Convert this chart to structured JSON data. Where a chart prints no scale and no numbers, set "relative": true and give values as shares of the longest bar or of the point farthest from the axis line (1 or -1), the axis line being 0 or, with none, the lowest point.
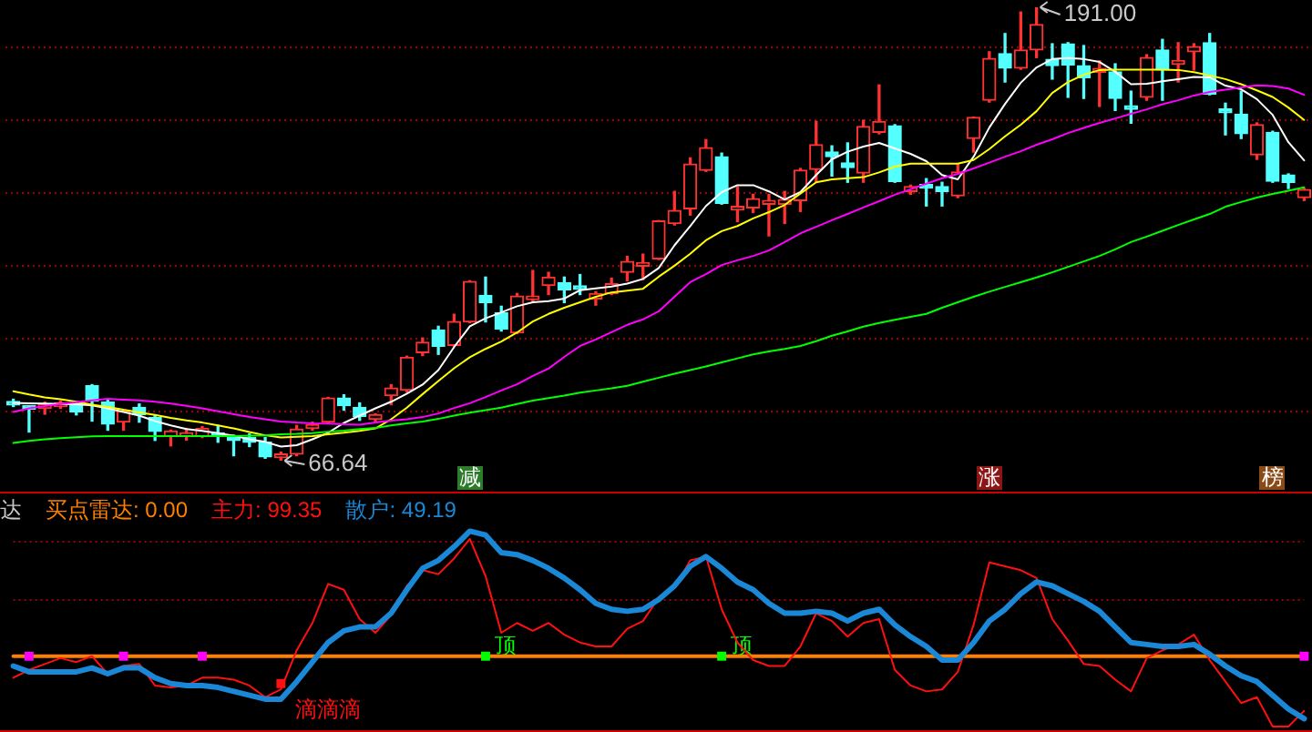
{
  "chart_data": [
    {
      "type": "candlestick",
      "categories": [
        null,
        null,
        null,
        null,
        null,
        null,
        null,
        null,
        null,
        null,
        null,
        null,
        null,
        null,
        null,
        null,
        null,
        null,
        null,
        null,
        null,
        null,
        null,
        null,
        null,
        null,
        null,
        null,
        null,
        null,
        null,
        null,
        null,
        null,
        null,
        null,
        null,
        null,
        null,
        null,
        null,
        null,
        null,
        null,
        null,
        null,
        null,
        null,
        null,
        null,
        null,
        null,
        null,
        null,
        null,
        null,
        null,
        null,
        null,
        null,
        null,
        null,
        null,
        null,
        null,
        null,
        null,
        null,
        null,
        null,
        null,
        null,
        null,
        null,
        null,
        null,
        null,
        null,
        null,
        null,
        null,
        null,
        null
      ],
      "ohlc": [
        [
          82.6,
          83.5,
          81.5,
          81.9
        ],
        [
          81.5,
          81.6,
          74.5,
          80.8
        ],
        [
          81.0,
          82.7,
          79.4,
          82.2
        ],
        [
          81.5,
          83.0,
          81.0,
          82.5
        ],
        [
          82.2,
          82.6,
          79.2,
          80.0
        ],
        [
          87.2,
          87.5,
          77.5,
          83.0
        ],
        [
          82.7,
          83.3,
          75.0,
          76.7
        ],
        [
          77.2,
          80.5,
          75.0,
          80.3
        ],
        [
          81.3,
          82.2,
          77.2,
          79.3
        ],
        [
          78.5,
          79.0,
          72.2,
          74.7
        ],
        [
          73.3,
          75.0,
          70.7,
          74.8
        ],
        [
          73.3,
          75.5,
          72.3,
          74.3
        ],
        [
          73.3,
          76.0,
          73.0,
          75.5
        ],
        [
          74.3,
          76.3,
          71.7,
          73.3
        ],
        [
          73.3,
          73.6,
          68.0,
          72.2
        ],
        [
          73.0,
          74.0,
          70.5,
          71.7
        ],
        [
          71.7,
          73.0,
          67.3,
          67.7
        ],
        [
          67.5,
          69.0,
          66.64,
          68.5
        ],
        [
          68.4,
          76.3,
          68.0,
          75.3
        ],
        [
          75.5,
          77.2,
          75.0,
          76.0
        ],
        [
          77.2,
          84.0,
          77.0,
          83.8
        ],
        [
          83.8,
          84.7,
          80.5,
          81.7
        ],
        [
          81.3,
          82.5,
          77.7,
          78.8
        ],
        [
          78.0,
          79.5,
          77.5,
          79.3
        ],
        [
          84.5,
          87.5,
          82.0,
          86.6
        ],
        [
          86.0,
          95.3,
          85.5,
          95.0
        ],
        [
          96.3,
          100.3,
          95.5,
          99.1
        ],
        [
          102.5,
          103.5,
          95.8,
          98.0
        ],
        [
          98.3,
          106.8,
          98.0,
          104.8
        ],
        [
          104.7,
          116.0,
          104.5,
          115.8
        ],
        [
          112.0,
          117.0,
          104.7,
          110.0
        ],
        [
          107.2,
          109.0,
          102.2,
          102.7
        ],
        [
          101.7,
          112.5,
          101.5,
          111.8
        ],
        [
          110.8,
          118.8,
          110.5,
          111.0
        ],
        [
          114.7,
          118.3,
          112.2,
          117.0
        ],
        [
          115.5,
          117.0,
          110.0,
          113.5
        ],
        [
          113.8,
          117.7,
          112.2,
          113.6
        ],
        [
          111.0,
          113.0,
          109.3,
          112.5
        ],
        [
          112.5,
          116.7,
          112.2,
          115.2
        ],
        [
          118.3,
          122.7,
          116.0,
          121.3
        ],
        [
          120.0,
          123.3,
          116.3,
          120.2
        ],
        [
          122.0,
          132.5,
          121.8,
          132.4
        ],
        [
          131.7,
          140.5,
          131.3,
          135.3
        ],
        [
          135.7,
          149.7,
          134.0,
          148.0
        ],
        [
          146.3,
          154.7,
          146.0,
          152.5
        ],
        [
          150.0,
          151.0,
          137.0,
          137.2
        ],
        [
          135.4,
          141.7,
          132.2,
          135.6
        ],
        [
          136.0,
          139.7,
          134.7,
          138.5
        ],
        [
          137.0,
          139.7,
          128.3,
          138.0
        ],
        [
          137.0,
          140.5,
          131.7,
          138.3
        ],
        [
          138.0,
          146.8,
          135.0,
          146.3
        ],
        [
          146.5,
          159.7,
          143.0,
          153.3
        ],
        [
          151.3,
          153.0,
          144.7,
          150.0
        ],
        [
          148.3,
          153.8,
          143.0,
          147.0
        ],
        [
          145.5,
          160.0,
          143.0,
          158.3
        ],
        [
          156.7,
          169.7,
          156.3,
          159.7
        ],
        [
          158.5,
          158.8,
          143.0,
          143.2
        ],
        [
          140.5,
          142.2,
          139.7,
          141.8
        ],
        [
          141.5,
          144.0,
          136.5,
          141.4
        ],
        [
          141.8,
          143.0,
          136.5,
          140.5
        ],
        [
          139.3,
          148.0,
          138.8,
          145.8
        ],
        [
          155.0,
          160.9,
          151.3,
          160.8
        ],
        [
          165.5,
          178.8,
          165.0,
          177.0
        ],
        [
          178.3,
          183.8,
          170.5,
          174.3
        ],
        [
          174.3,
          189.7,
          174.0,
          179.3
        ],
        [
          179.3,
          191.0,
          177.2,
          186.3
        ],
        [
          176.7,
          181.0,
          171.3,
          175.0
        ],
        [
          181.0,
          181.3,
          166.3,
          175.2
        ],
        [
          175.0,
          180.5,
          166.0,
          171.7
        ],
        [
          173.2,
          176.3,
          163.8,
          173.4
        ],
        [
          173.3,
          175.5,
          162.7,
          166.0
        ],
        [
          163.2,
          168.0,
          159.2,
          163.0
        ],
        [
          166.3,
          178.0,
          165.5,
          177.2
        ],
        [
          179.3,
          182.2,
          165.5,
          173.8
        ],
        [
          175.4,
          181.3,
          170.5,
          176.4
        ],
        [
          178.8,
          181.0,
          173.8,
          180.2
        ],
        [
          181.3,
          183.8,
          167.0,
          167.2
        ],
        [
          162.3,
          164.7,
          156.0,
          162.1
        ],
        [
          161.7,
          168.0,
          155.0,
          156.3
        ],
        [
          150.5,
          159.3,
          149.3,
          158.8
        ],
        [
          156.7,
          157.0,
          143.0,
          143.3
        ],
        [
          145.0,
          145.3,
          141.3,
          143.0
        ],
        [
          138.8,
          141.3,
          138.0,
          141.0
        ]
      ],
      "colors": [
        "#54ffff",
        "#54ffff",
        "#ff3232",
        "#ff3232",
        "#54ffff",
        "#54ffff",
        "#54ffff",
        "#ff3232",
        "#54ffff",
        "#54ffff",
        "#ff3232",
        "#ff3232",
        "#ff3232",
        "#54ffff",
        "#54ffff",
        "#54ffff",
        "#54ffff",
        "#ff3232",
        "#ff3232",
        "#ff3232",
        "#ff3232",
        "#54ffff",
        "#54ffff",
        "#ff3232",
        "#ff3232",
        "#ff3232",
        "#ff3232",
        "#54ffff",
        "#ff3232",
        "#ff3232",
        "#54ffff",
        "#54ffff",
        "#ff3232",
        "#ff3232",
        "#ff3232",
        "#54ffff",
        "#54ffff",
        "#ff3232",
        "#ff3232",
        "#ff3232",
        "#ff3232",
        "#ff3232",
        "#ff3232",
        "#ff3232",
        "#ff3232",
        "#54ffff",
        "#ff3232",
        "#ff3232",
        "#ff3232",
        "#ff3232",
        "#ff3232",
        "#ff3232",
        "#54ffff",
        "#54ffff",
        "#ff3232",
        "#ff3232",
        "#54ffff",
        "#ff3232",
        "#54ffff",
        "#54ffff",
        "#ff3232",
        "#ff3232",
        "#ff3232",
        "#54ffff",
        "#ff3232",
        "#ff3232",
        "#54ffff",
        "#54ffff",
        "#54ffff",
        "#ff3232",
        "#54ffff",
        "#54ffff",
        "#ff3232",
        "#54ffff",
        "#ff3232",
        "#ff3232",
        "#54ffff",
        "#54ffff",
        "#54ffff",
        "#ff3232",
        "#54ffff",
        "#54ffff",
        "#ff3232"
      ],
      "series": [
        {
          "type": "line",
          "color": "#ffffff",
          "values": [
            82.5,
            82.4,
            82.3,
            82.2,
            82.1,
            81.8,
            81.0,
            80.0,
            79.0,
            77.5,
            76.3,
            75.3,
            74.8,
            74.2,
            73.5,
            72.5,
            71.8,
            70.5,
            70.9,
            72.5,
            74.3,
            77.0,
            79.0,
            81.0,
            82.8,
            85.0,
            87.5,
            91.5,
            97.8,
            103.5,
            105.7,
            107.3,
            109.0,
            110.1,
            110.4,
            111.1,
            113.4,
            113.9,
            114.4,
            115.2,
            116.5,
            119.5,
            125.7,
            131.0,
            136.5,
            140.3,
            142.2,
            142.2,
            140.5,
            138.3,
            140.3,
            145.0,
            149.3,
            151.4,
            152.8,
            153.8,
            152.3,
            150.8,
            148.8,
            145.0,
            143.8,
            150.0,
            158.0,
            164.5,
            170.3,
            174.5,
            176.8,
            177.1,
            176.8,
            176.0,
            173.3,
            169.9,
            170.0,
            170.7,
            171.3,
            171.9,
            171.8,
            169.5,
            168.5,
            165.8,
            161.5,
            154.0,
            149.0
          ]
        },
        {
          "type": "line",
          "color": "#ffff00",
          "values": [
            85.7,
            84.8,
            84.0,
            83.5,
            82.8,
            82.0,
            81.4,
            80.6,
            79.9,
            79.2,
            78.4,
            77.7,
            77.1,
            76.3,
            75.5,
            74.5,
            73.6,
            73.0,
            73.2,
            73.4,
            73.9,
            74.3,
            74.8,
            75.5,
            78.0,
            81.2,
            84.9,
            88.5,
            92.0,
            95.0,
            97.3,
            99.3,
            101.8,
            104.8,
            106.9,
            108.6,
            110.1,
            111.6,
            112.8,
            113.3,
            113.8,
            117.1,
            120.1,
            123.4,
            127.1,
            129.6,
            131.0,
            133.1,
            134.8,
            136.8,
            139.9,
            143.0,
            143.8,
            144.1,
            144.4,
            145.7,
            147.3,
            148.1,
            148.1,
            148.1,
            148.1,
            149.1,
            152.1,
            155.6,
            158.8,
            162.5,
            167.5,
            170.5,
            172.5,
            173.8,
            173.9,
            173.9,
            173.9,
            173.9,
            173.8,
            173.2,
            172.3,
            171.3,
            169.9,
            168.2,
            166.4,
            163.5,
            160.1
          ]
        },
        {
          "type": "line",
          "color": "#ff00ff",
          "values": [
            80.0,
            81.0,
            81.6,
            82.2,
            82.7,
            83.2,
            83.6,
            83.4,
            83.2,
            82.8,
            82.3,
            81.7,
            81.0,
            80.2,
            79.4,
            78.6,
            78.0,
            77.4,
            77.1,
            76.9,
            76.8,
            76.6,
            76.5,
            77.1,
            77.6,
            78.0,
            78.6,
            79.6,
            81.1,
            82.4,
            84.1,
            85.9,
            87.6,
            89.9,
            91.9,
            95.1,
            98.1,
            99.9,
            101.9,
            103.9,
            105.4,
            107.6,
            111.6,
            115.6,
            117.8,
            120.3,
            121.6,
            122.8,
            124.3,
            126.6,
            129.0,
            130.8,
            132.6,
            134.3,
            136.1,
            137.8,
            139.6,
            141.1,
            142.6,
            144.1,
            145.3,
            146.8,
            148.4,
            150.0,
            151.5,
            153.3,
            154.8,
            156.5,
            157.9,
            159.3,
            160.5,
            161.8,
            163.0,
            164.4,
            165.5,
            166.8,
            167.8,
            168.4,
            169.0,
            169.6,
            169.4,
            168.7,
            167.0
          ]
        },
        {
          "type": "line",
          "color": "#00ff00",
          "values": [
            71.5,
            72.1,
            72.5,
            72.8,
            73.1,
            73.3,
            73.4,
            73.4,
            73.4,
            73.4,
            73.4,
            73.4,
            73.4,
            73.4,
            73.4,
            73.5,
            73.6,
            73.9,
            74.0,
            74.2,
            74.6,
            74.9,
            75.3,
            75.6,
            76.3,
            76.9,
            77.4,
            78.1,
            79.0,
            79.8,
            80.5,
            81.2,
            82.2,
            83.1,
            83.8,
            84.5,
            85.3,
            85.9,
            86.5,
            87.2,
            88.3,
            89.4,
            90.5,
            91.5,
            92.5,
            93.6,
            94.7,
            95.8,
            96.6,
            97.3,
            98.1,
            99.4,
            100.9,
            102.1,
            103.4,
            104.4,
            105.3,
            106.1,
            106.9,
            108.6,
            110.1,
            111.6,
            113.0,
            114.3,
            115.6,
            116.9,
            118.3,
            119.8,
            121.3,
            122.8,
            124.6,
            126.6,
            128.1,
            129.7,
            131.3,
            132.8,
            134.3,
            136.3,
            137.6,
            138.8,
            139.8,
            140.7,
            141.6
          ]
        }
      ],
      "yticks": [
        {
          "value": 80,
          "label": null
        },
        {
          "value": 100,
          "label": null
        },
        {
          "value": 120,
          "label": null
        },
        {
          "value": 140,
          "label": null
        },
        {
          "value": 160,
          "label": null
        },
        {
          "value": 180,
          "label": null
        }
      ],
      "grid": "y",
      "tick_labels": false,
      "marker": "none",
      "annotations": [
        "191.00",
        "66.64",
        "减",
        "涨",
        "榜"
      ]
    },
    {
      "type": "line",
      "title": "达",
      "categories": [
        null,
        null,
        null,
        null,
        null,
        null,
        null,
        null,
        null,
        null,
        null,
        null,
        null,
        null,
        null,
        null,
        null,
        null,
        null,
        null,
        null,
        null,
        null,
        null,
        null,
        null,
        null,
        null,
        null,
        null,
        null,
        null,
        null,
        null,
        null,
        null,
        null,
        null,
        null,
        null,
        null,
        null,
        null,
        null,
        null,
        null,
        null,
        null,
        null,
        null,
        null,
        null,
        null,
        null,
        null,
        null,
        null,
        null,
        null,
        null,
        null,
        null,
        null,
        null,
        null,
        null,
        null,
        null,
        null,
        null,
        null,
        null,
        null,
        null,
        null,
        null,
        null,
        null,
        null,
        null,
        null,
        null,
        null
      ],
      "relative": true,
      "tick_labels": false,
      "marker": "none",
      "series": [
        {
          "name": "买点雷达: 0.00",
          "color": "#ff8000",
          "values": [
            0.36,
            0.36,
            0.36,
            0.36,
            0.36,
            0.36,
            0.36,
            0.36,
            0.36,
            0.36,
            0.36,
            0.36,
            0.36,
            0.36,
            0.36,
            0.36,
            0.36,
            0.36,
            0.36,
            0.36,
            0.36,
            0.36,
            0.36,
            0.36,
            0.36,
            0.36,
            0.36,
            0.36,
            0.36,
            0.36,
            0.36,
            0.36,
            0.36,
            0.36,
            0.36,
            0.36,
            0.36,
            0.36,
            0.36,
            0.36,
            0.36,
            0.36,
            0.36,
            0.36,
            0.36,
            0.36,
            0.36,
            0.36,
            0.36,
            0.36,
            0.36,
            0.36,
            0.36,
            0.36,
            0.36,
            0.36,
            0.36,
            0.36,
            0.36,
            0.36,
            0.36,
            0.36,
            0.36,
            0.36,
            0.36,
            0.36,
            0.36,
            0.36,
            0.36,
            0.36,
            0.36,
            0.36,
            0.36,
            0.36,
            0.36,
            0.36,
            0.36,
            0.36,
            0.36,
            0.36,
            0.36,
            0.36,
            0.36
          ]
        },
        {
          "name": "主力: 99.35",
          "color": "#ff1010",
          "values": [
            0.25,
            0.29,
            0.32,
            0.35,
            0.33,
            0.36,
            0.27,
            0.31,
            0.32,
            0.21,
            0.2,
            0.21,
            0.25,
            0.25,
            0.24,
            0.21,
            0.15,
            0.19,
            0.39,
            0.53,
            0.73,
            0.7,
            0.55,
            0.48,
            0.57,
            0.72,
            0.8,
            0.78,
            0.86,
            0.96,
            0.77,
            0.48,
            0.53,
            0.49,
            0.53,
            0.47,
            0.43,
            0.41,
            0.41,
            0.5,
            0.54,
            0.66,
            0.71,
            0.85,
            0.87,
            0.6,
            0.43,
            0.34,
            0.31,
            0.31,
            0.41,
            0.58,
            0.54,
            0.46,
            0.53,
            0.55,
            0.29,
            0.21,
            0.18,
            0.19,
            0.28,
            0.52,
            0.84,
            0.82,
            0.8,
            0.76,
            0.55,
            0.44,
            0.32,
            0.31,
            0.24,
            0.18,
            0.35,
            0.39,
            0.42,
            0.47,
            0.34,
            0.23,
            0.12,
            0.15,
            0,
            0,
            0.08
          ]
        },
        {
          "name": "散户: 49.19",
          "color": "#1a88d6",
          "values": [
            0.31,
            0.28,
            0.28,
            0.28,
            0.28,
            0.3,
            0.27,
            0.3,
            0.3,
            0.25,
            0.22,
            0.21,
            0.21,
            0.2,
            0.18,
            0.16,
            0.14,
            0.14,
            0.23,
            0.33,
            0.43,
            0.49,
            0.51,
            0.51,
            0.58,
            0.7,
            0.81,
            0.85,
            0.92,
            1,
            0.98,
            0.89,
            0.88,
            0.85,
            0.81,
            0.76,
            0.7,
            0.63,
            0.6,
            0.59,
            0.6,
            0.65,
            0.72,
            0.82,
            0.87,
            0.81,
            0.74,
            0.7,
            0.63,
            0.58,
            0.58,
            0.59,
            0.58,
            0.54,
            0.58,
            0.6,
            0.52,
            0.46,
            0.41,
            0.34,
            0.34,
            0.43,
            0.54,
            0.6,
            0.68,
            0.74,
            0.72,
            0.68,
            0.64,
            0.59,
            0.51,
            0.43,
            0.42,
            0.41,
            0.41,
            0.42,
            0.37,
            0.31,
            0.26,
            0.23,
            0.16,
            0.09,
            0.04
          ]
        },
        {
          "type": "scatter",
          "color": "#ff00ff",
          "marker": "square",
          "values": [
            null,
            0.36,
            null,
            null,
            null,
            null,
            null,
            0.36,
            null,
            null,
            null,
            null,
            0.36,
            null,
            null,
            null,
            null,
            null,
            null,
            null,
            null,
            null,
            null,
            null,
            null,
            null,
            null,
            null,
            null,
            null,
            null,
            null,
            null,
            null,
            null,
            null,
            null,
            null,
            null,
            null,
            null,
            null,
            null,
            null,
            null,
            null,
            null,
            null,
            null,
            null,
            null,
            null,
            null,
            null,
            null,
            null,
            null,
            null,
            null,
            null,
            null,
            null,
            null,
            null,
            null,
            null,
            null,
            null,
            null,
            null,
            null,
            null,
            null,
            null,
            null,
            null,
            null,
            null,
            null,
            null,
            null,
            null,
            0.36
          ]
        },
        {
          "type": "scatter",
          "color": "#00ff00",
          "marker": "square",
          "values": [
            null,
            null,
            null,
            null,
            null,
            null,
            null,
            null,
            null,
            null,
            null,
            null,
            null,
            null,
            null,
            null,
            null,
            null,
            null,
            null,
            null,
            null,
            null,
            null,
            null,
            null,
            null,
            null,
            null,
            null,
            0.36,
            null,
            null,
            null,
            null,
            null,
            null,
            null,
            null,
            null,
            null,
            null,
            null,
            null,
            null,
            0.36,
            null,
            null,
            null,
            null,
            null,
            null,
            null,
            null,
            null,
            null,
            null,
            null,
            null,
            null,
            null,
            null,
            null,
            null,
            null,
            null,
            null,
            null,
            null,
            null,
            null,
            null,
            null,
            null,
            null,
            null,
            null,
            null,
            null,
            null,
            null,
            null,
            null
          ]
        },
        {
          "type": "scatter",
          "color": "#ff1010",
          "marker": "square",
          "values": [
            null,
            null,
            null,
            null,
            null,
            null,
            null,
            null,
            null,
            null,
            null,
            null,
            null,
            null,
            null,
            null,
            null,
            0.22,
            null,
            null,
            null,
            null,
            null,
            null,
            null,
            null,
            null,
            null,
            null,
            null,
            null,
            null,
            null,
            null,
            null,
            null,
            null,
            null,
            null,
            null,
            null,
            null,
            null,
            null,
            null,
            null,
            null,
            null,
            null,
            null,
            null,
            null,
            null,
            null,
            null,
            null,
            null,
            null,
            null,
            null,
            null,
            null,
            null,
            null,
            null,
            null,
            null,
            null,
            null,
            null,
            null,
            null,
            null,
            null,
            null,
            null,
            null,
            null,
            null,
            null,
            null,
            null,
            null
          ]
        }
      ],
      "ref_lines": [
        {
          "axis": "y",
          "value": 0.95,
          "color": "#a00000",
          "line_style": "dotted"
        },
        {
          "axis": "y",
          "value": 0.65,
          "color": "#a00000",
          "line_style": "dotted"
        }
      ],
      "annotations": [
        "顶",
        "顶",
        "滴滴滴"
      ]
    }
  ]
}
